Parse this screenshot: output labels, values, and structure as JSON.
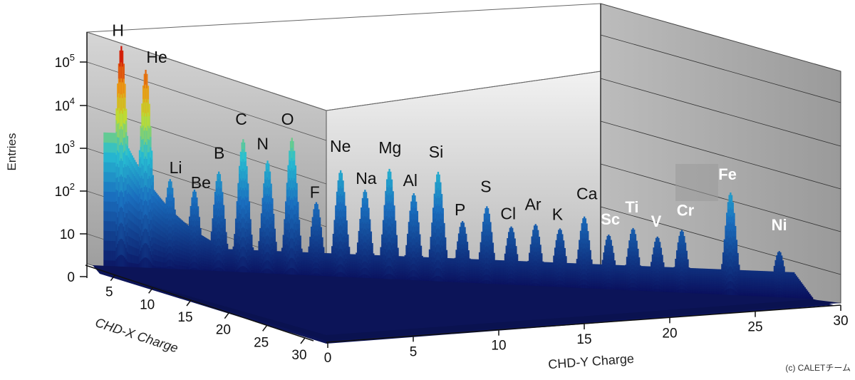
{
  "chart_data": {
    "type": "surface-3d",
    "title": "",
    "xlabel": "CHD-X Charge",
    "ylabel": "CHD-Y Charge",
    "zlabel": "Entries",
    "z_scale": "log",
    "xlim": [
      0,
      30
    ],
    "ylim": [
      0,
      30
    ],
    "x_ticks": [
      "5",
      "10",
      "15",
      "20",
      "25",
      "30"
    ],
    "y_ticks": [
      "0",
      "5",
      "10",
      "15",
      "20",
      "25",
      "30"
    ],
    "z_ticks": [
      "0",
      "10",
      "10^2",
      "10^3",
      "10^4",
      "10^5"
    ],
    "peaks": [
      {
        "element": "H",
        "charge": 1,
        "entries": 170000
      },
      {
        "element": "He",
        "charge": 2,
        "entries": 50000
      },
      {
        "element": "Li",
        "charge": 3,
        "entries": 150
      },
      {
        "element": "Be",
        "charge": 4,
        "entries": 90
      },
      {
        "element": "B",
        "charge": 5,
        "entries": 250
      },
      {
        "element": "C",
        "charge": 6,
        "entries": 1500
      },
      {
        "element": "N",
        "charge": 7,
        "entries": 500
      },
      {
        "element": "O",
        "charge": 8,
        "entries": 1800
      },
      {
        "element": "F",
        "charge": 9,
        "entries": 60
      },
      {
        "element": "Ne",
        "charge": 10,
        "entries": 350
      },
      {
        "element": "Na",
        "charge": 11,
        "entries": 130
      },
      {
        "element": "Mg",
        "charge": 12,
        "entries": 420
      },
      {
        "element": "Al",
        "charge": 13,
        "entries": 120
      },
      {
        "element": "Si",
        "charge": 14,
        "entries": 400
      },
      {
        "element": "P",
        "charge": 15,
        "entries": 30
      },
      {
        "element": "S",
        "charge": 16,
        "entries": 70
      },
      {
        "element": "Cl",
        "charge": 17,
        "entries": 25
      },
      {
        "element": "Ar",
        "charge": 18,
        "entries": 30
      },
      {
        "element": "K",
        "charge": 19,
        "entries": 25
      },
      {
        "element": "Ca",
        "charge": 20,
        "entries": 50
      },
      {
        "element": "Sc",
        "charge": 21,
        "entries": 20
      },
      {
        "element": "Ti",
        "charge": 22,
        "entries": 30
      },
      {
        "element": "V",
        "charge": 23,
        "entries": 20
      },
      {
        "element": "Cr",
        "charge": 24,
        "entries": 30
      },
      {
        "element": "Fe",
        "charge": 26,
        "entries": 250
      },
      {
        "element": "Ni",
        "charge": 28,
        "entries": 12
      }
    ]
  },
  "credit": "(c) CALETチーム",
  "colors": {
    "low": "#0a0f5c",
    "mid": "#1aa3d9",
    "high_mid": "#d9dc2a",
    "peak": "#d21a0a",
    "wall": "#c8c8c8",
    "floor": "#0a1250"
  }
}
